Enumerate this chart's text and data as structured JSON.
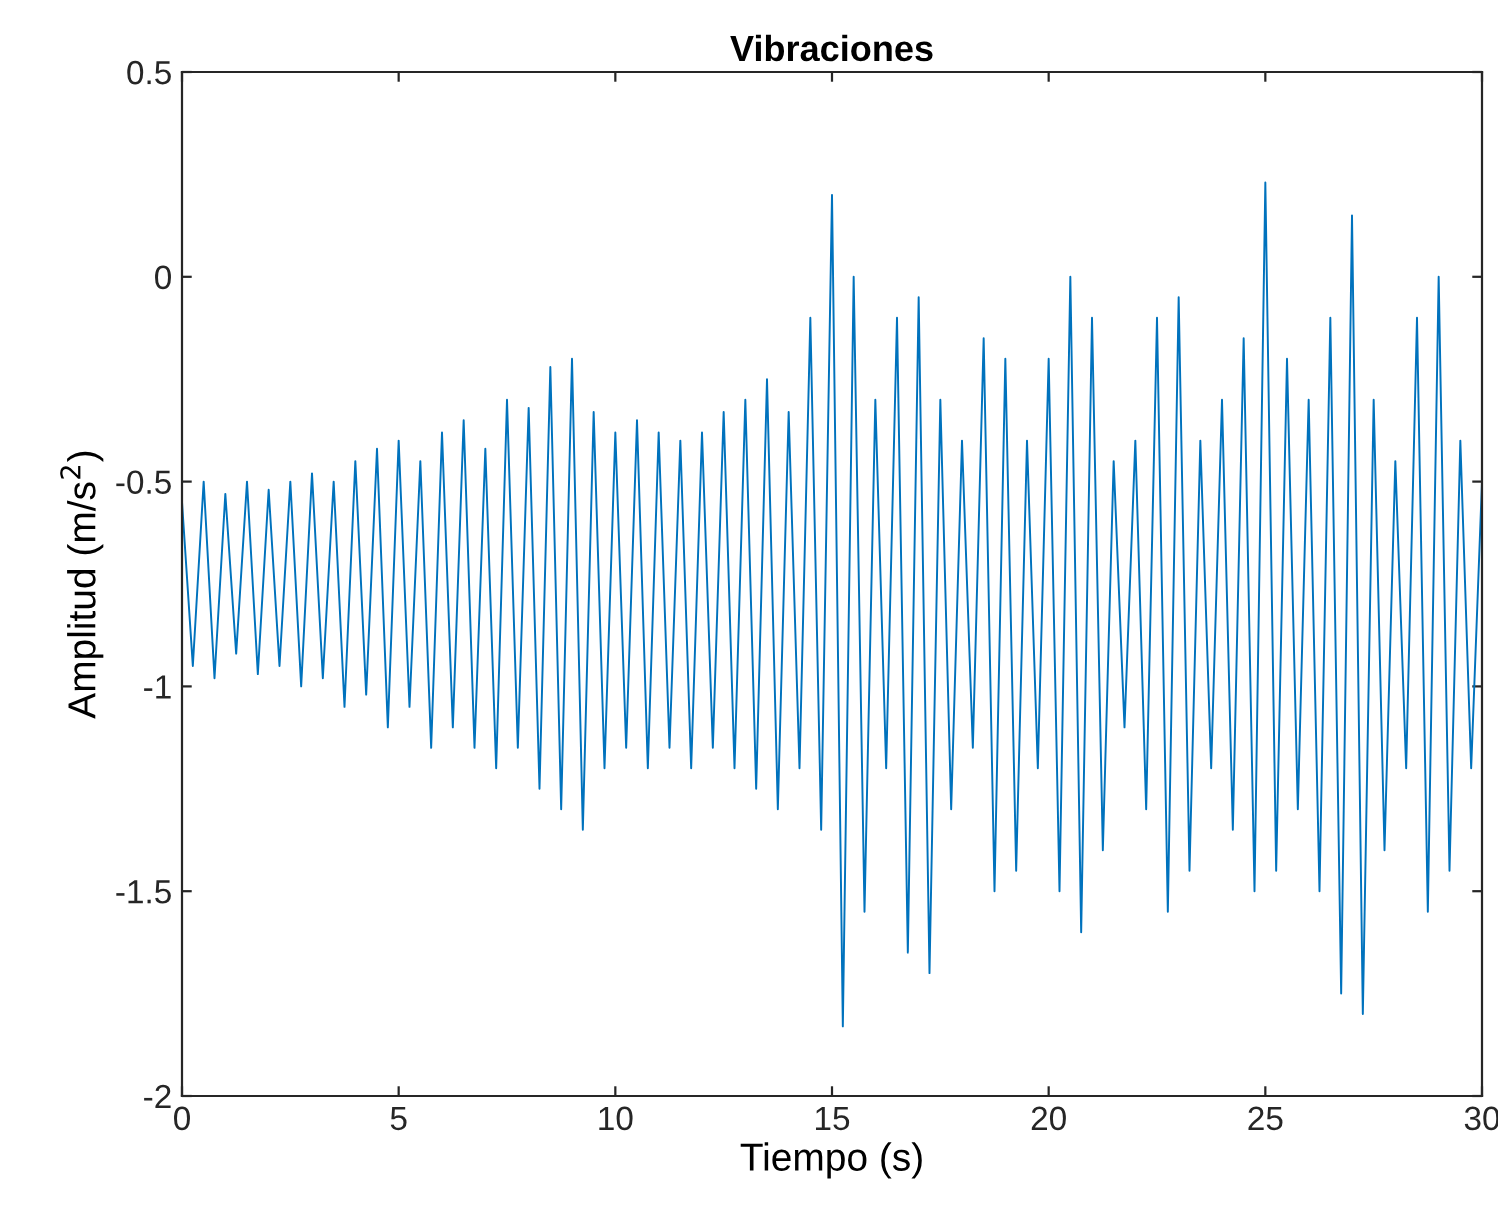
{
  "chart_data": {
    "type": "line",
    "title": "Vibraciones",
    "xlabel": "Tiempo (s)",
    "ylabel": "Amplitud (m/s$^{2}$)",
    "xlim": [
      0,
      30
    ],
    "xticks": [
      0,
      5,
      10,
      15,
      20,
      25,
      30
    ],
    "ylim": [
      -2,
      0.5
    ],
    "yticks": [
      -2,
      -1.5,
      -1,
      -0.5,
      0,
      0.5
    ],
    "grid": false,
    "line_style": "solid",
    "marker": "none",
    "x": [
      0,
      0.25,
      0.5,
      0.75,
      1,
      1.25,
      1.5,
      1.75,
      2,
      2.25,
      2.5,
      2.75,
      3,
      3.25,
      3.5,
      3.75,
      4,
      4.25,
      4.5,
      4.75,
      5,
      5.25,
      5.5,
      5.75,
      6,
      6.25,
      6.5,
      6.75,
      7,
      7.25,
      7.5,
      7.75,
      8,
      8.25,
      8.5,
      8.75,
      9,
      9.25,
      9.5,
      9.75,
      10,
      10.25,
      10.5,
      10.75,
      11,
      11.25,
      11.5,
      11.75,
      12,
      12.25,
      12.5,
      12.75,
      13,
      13.25,
      13.5,
      13.75,
      14,
      14.25,
      14.5,
      14.75,
      15,
      15.25,
      15.5,
      15.75,
      16,
      16.25,
      16.5,
      16.75,
      17,
      17.25,
      17.5,
      17.75,
      18,
      18.25,
      18.5,
      18.75,
      19,
      19.25,
      19.5,
      19.75,
      20,
      20.25,
      20.5,
      20.75,
      21,
      21.25,
      21.5,
      21.75,
      22,
      22.25,
      22.5,
      22.75,
      23,
      23.25,
      23.5,
      23.75,
      24,
      24.25,
      24.5,
      24.75,
      25,
      25.25,
      25.5,
      25.75,
      26,
      26.25,
      26.5,
      26.75,
      27,
      27.25,
      27.5,
      27.75,
      28,
      28.25,
      28.5,
      28.75,
      29,
      29.25,
      29.5,
      29.75,
      30
    ],
    "series": [
      {
        "color": "#0072bd",
        "values": [
          -0.55,
          -0.95,
          -0.5,
          -0.98,
          -0.53,
          -0.92,
          -0.5,
          -0.97,
          -0.52,
          -0.95,
          -0.5,
          -1.0,
          -0.48,
          -0.98,
          -0.5,
          -1.05,
          -0.45,
          -1.02,
          -0.42,
          -1.1,
          -0.4,
          -1.05,
          -0.45,
          -1.15,
          -0.38,
          -1.1,
          -0.35,
          -1.15,
          -0.42,
          -1.2,
          -0.3,
          -1.15,
          -0.32,
          -1.25,
          -0.22,
          -1.3,
          -0.2,
          -1.35,
          -0.33,
          -1.2,
          -0.38,
          -1.15,
          -0.35,
          -1.2,
          -0.38,
          -1.15,
          -0.4,
          -1.2,
          -0.38,
          -1.15,
          -0.33,
          -1.2,
          -0.3,
          -1.25,
          -0.25,
          -1.3,
          -0.33,
          -1.2,
          -0.1,
          -1.35,
          0.2,
          -1.83,
          0.0,
          -1.55,
          -0.3,
          -1.2,
          -0.1,
          -1.65,
          -0.05,
          -1.7,
          -0.3,
          -1.3,
          -0.4,
          -1.15,
          -0.15,
          -1.5,
          -0.2,
          -1.45,
          -0.4,
          -1.2,
          -0.2,
          -1.5,
          0.0,
          -1.6,
          -0.1,
          -1.4,
          -0.45,
          -1.1,
          -0.4,
          -1.3,
          -0.1,
          -1.55,
          -0.05,
          -1.45,
          -0.4,
          -1.2,
          -0.3,
          -1.35,
          -0.15,
          -1.5,
          0.23,
          -1.45,
          -0.2,
          -1.3,
          -0.3,
          -1.5,
          -0.1,
          -1.75,
          0.15,
          -1.8,
          -0.3,
          -1.4,
          -0.45,
          -1.2,
          -0.1,
          -1.55,
          0.0,
          -1.45,
          -0.4,
          -1.2,
          -0.5
        ]
      }
    ]
  }
}
